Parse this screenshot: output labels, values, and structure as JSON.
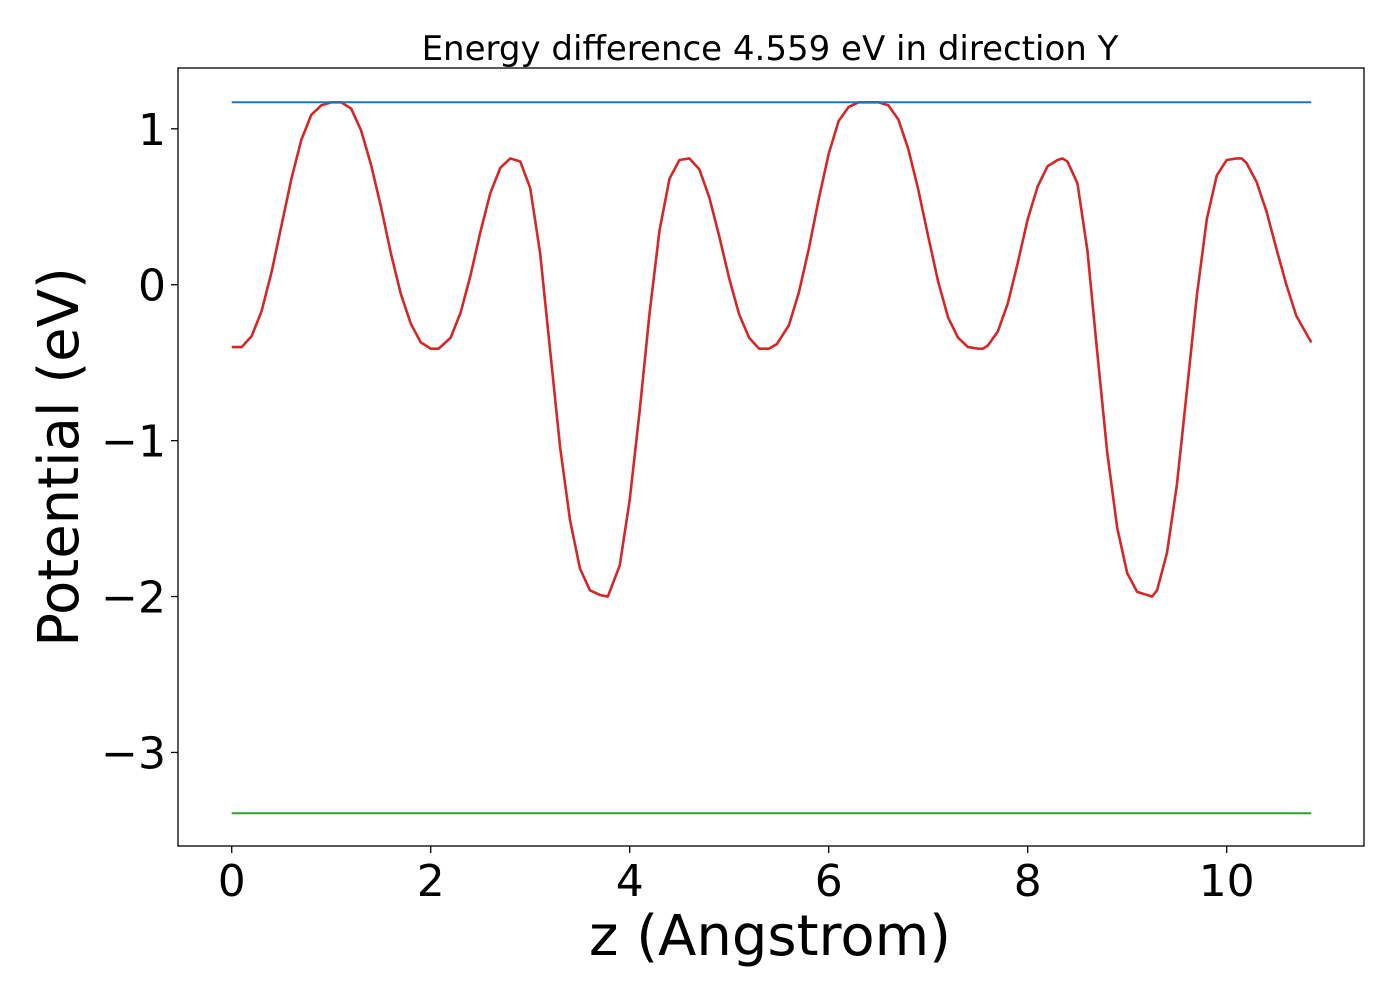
{
  "chart_data": {
    "type": "line",
    "title": "Energy difference 4.559 eV in direction Y",
    "xlabel": "z (Angstrom)",
    "ylabel": "Potential (eV)",
    "xlim": [
      -0.54,
      11.38
    ],
    "ylim": [
      -3.6,
      1.39
    ],
    "xticks": [
      0,
      2,
      4,
      6,
      8,
      10
    ],
    "xtick_labels": [
      "0",
      "2",
      "4",
      "6",
      "8",
      "10"
    ],
    "yticks": [
      1,
      0,
      -1,
      -2,
      -3
    ],
    "ytick_labels": [
      "1",
      "0",
      "−1",
      "−2",
      "−3"
    ],
    "grid": false,
    "legend": "none",
    "series": [
      {
        "color": "#d62728",
        "x": [
          0.0,
          0.1,
          0.2,
          0.3,
          0.4,
          0.5,
          0.6,
          0.7,
          0.8,
          0.9,
          1.0,
          1.05,
          1.1,
          1.2,
          1.3,
          1.4,
          1.5,
          1.6,
          1.7,
          1.8,
          1.9,
          2.0,
          2.08,
          2.2,
          2.3,
          2.4,
          2.5,
          2.6,
          2.7,
          2.8,
          2.9,
          3.0,
          3.1,
          3.2,
          3.3,
          3.4,
          3.5,
          3.6,
          3.7,
          3.78,
          3.9,
          4.0,
          4.1,
          4.2,
          4.3,
          4.4,
          4.5,
          4.6,
          4.7,
          4.8,
          4.9,
          5.0,
          5.1,
          5.2,
          5.3,
          5.4,
          5.48,
          5.6,
          5.7,
          5.8,
          5.9,
          6.0,
          6.1,
          6.2,
          6.3,
          6.4,
          6.5,
          6.6,
          6.7,
          6.8,
          6.9,
          7.0,
          7.1,
          7.2,
          7.3,
          7.4,
          7.5,
          7.55,
          7.6,
          7.7,
          7.8,
          7.9,
          8.0,
          8.1,
          8.2,
          8.3,
          8.35,
          8.4,
          8.5,
          8.6,
          8.7,
          8.8,
          8.9,
          9.0,
          9.1,
          9.2,
          9.25,
          9.3,
          9.4,
          9.5,
          9.6,
          9.7,
          9.8,
          9.9,
          10.0,
          10.1,
          10.15,
          10.2,
          10.3,
          10.4,
          10.5,
          10.6,
          10.7,
          10.85
        ],
        "y": [
          -0.4,
          -0.4,
          -0.33,
          -0.17,
          0.08,
          0.38,
          0.68,
          0.93,
          1.09,
          1.15,
          1.17,
          1.17,
          1.17,
          1.13,
          0.99,
          0.77,
          0.5,
          0.2,
          -0.06,
          -0.25,
          -0.37,
          -0.41,
          -0.41,
          -0.34,
          -0.18,
          0.06,
          0.34,
          0.59,
          0.75,
          0.81,
          0.79,
          0.62,
          0.2,
          -0.42,
          -1.04,
          -1.51,
          -1.82,
          -1.96,
          -1.99,
          -2.0,
          -1.8,
          -1.38,
          -0.81,
          -0.18,
          0.35,
          0.68,
          0.8,
          0.81,
          0.74,
          0.56,
          0.31,
          0.04,
          -0.19,
          -0.34,
          -0.41,
          -0.41,
          -0.38,
          -0.26,
          -0.05,
          0.23,
          0.55,
          0.84,
          1.05,
          1.14,
          1.17,
          1.17,
          1.17,
          1.15,
          1.06,
          0.87,
          0.61,
          0.31,
          0.02,
          -0.21,
          -0.34,
          -0.4,
          -0.41,
          -0.41,
          -0.39,
          -0.3,
          -0.12,
          0.14,
          0.42,
          0.63,
          0.76,
          0.8,
          0.81,
          0.79,
          0.65,
          0.22,
          -0.44,
          -1.08,
          -1.56,
          -1.85,
          -1.97,
          -1.99,
          -2.0,
          -1.96,
          -1.72,
          -1.28,
          -0.68,
          -0.07,
          0.42,
          0.7,
          0.8,
          0.81,
          0.81,
          0.78,
          0.66,
          0.47,
          0.23,
          0.0,
          -0.2,
          -0.37
        ]
      },
      {
        "color": "#1f77b4",
        "x": [
          0,
          10.85
        ],
        "y": [
          1.17,
          1.17
        ]
      },
      {
        "color": "#2ca02c",
        "x": [
          0,
          10.85
        ],
        "y": [
          -3.39,
          -3.39
        ]
      }
    ]
  }
}
